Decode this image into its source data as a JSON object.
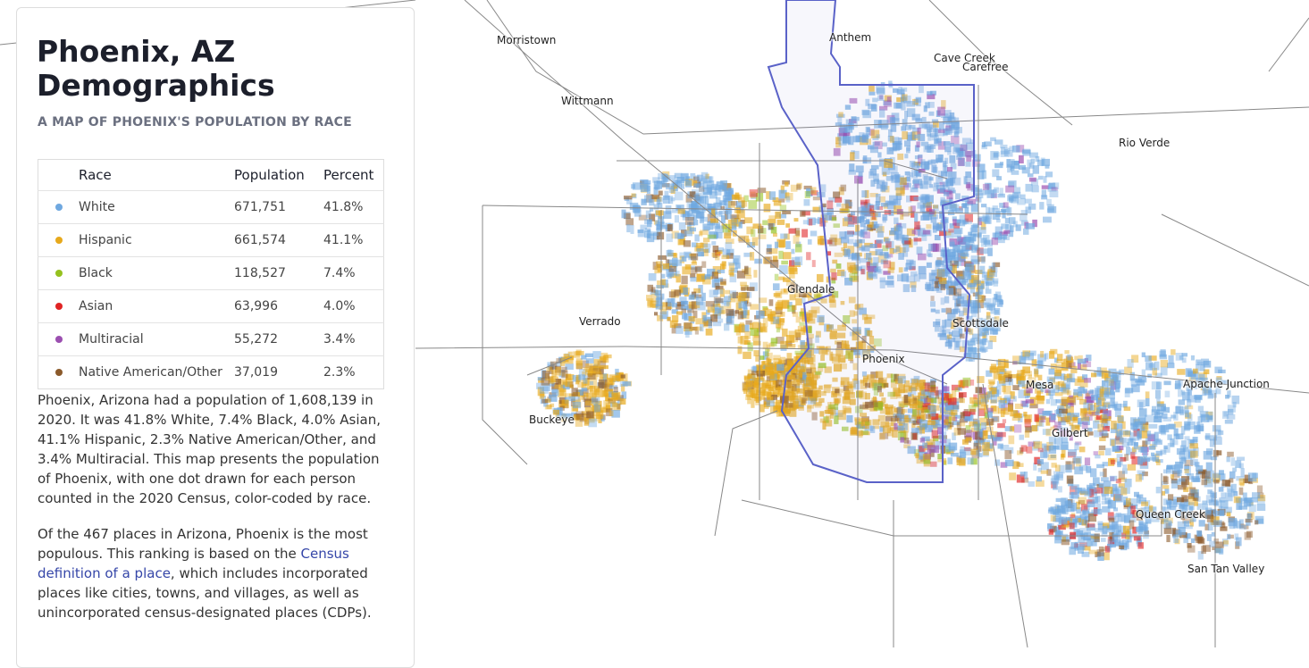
{
  "header": {
    "title": "Phoenix, AZ Demographics",
    "subtitle": "A MAP OF PHOENIX'S POPULATION BY RACE"
  },
  "table": {
    "columns": [
      "Race",
      "Population",
      "Percent"
    ],
    "rows": [
      {
        "race": "White",
        "population": "671,751",
        "percent": "41.8%",
        "color": "#6fa8e0"
      },
      {
        "race": "Hispanic",
        "population": "661,574",
        "percent": "41.1%",
        "color": "#e7a91c"
      },
      {
        "race": "Black",
        "population": "118,527",
        "percent": "7.4%",
        "color": "#95c11f"
      },
      {
        "race": "Asian",
        "population": "63,996",
        "percent": "4.0%",
        "color": "#e02424"
      },
      {
        "race": "Multiracial",
        "population": "55,272",
        "percent": "3.4%",
        "color": "#9b4fb0"
      },
      {
        "race": "Native American/Other",
        "population": "37,019",
        "percent": "2.3%",
        "color": "#8b5a2b"
      }
    ]
  },
  "paragraphs": [
    {
      "text": "Phoenix, Arizona had a population of 1,608,139 in 2020. It was 41.8% White, 7.4% Black, 4.0% Asian, 41.1% Hispanic, 2.3% Native American/Other, and 3.4% Multiracial. This map presents the population of Phoenix, with one dot drawn for each person counted in the 2020 Census, color-coded by race."
    },
    {
      "before": "Of the 467 places in Arizona, Phoenix is the most populous. This ranking is based on the ",
      "link": "Census definition of a place",
      "after": ", which includes incorporated places like cities, towns, and villages, as well as unincorporated census-designated places (CDPs)."
    }
  ],
  "map": {
    "labels": [
      "Morristown",
      "Anthem",
      "Cave Creek",
      "Carefree",
      "Wittmann",
      "Rio Verde",
      "Glendale",
      "Verrado",
      "Scottsdale",
      "Phoenix",
      "Mesa",
      "Apache Junction",
      "Buckeye",
      "Gilbert",
      "Queen Creek",
      "San Tan Valley"
    ]
  }
}
